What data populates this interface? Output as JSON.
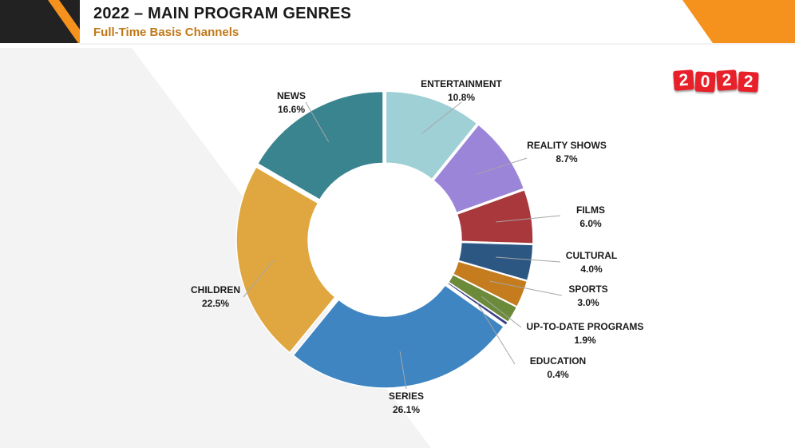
{
  "slide": {
    "title": "2022 – MAIN PROGRAM GENRES",
    "subtitle": "Full-Time Basis Channels",
    "year_badge": [
      "2",
      "0",
      "2",
      "2"
    ]
  },
  "colors": {
    "subtitle": "#c07818",
    "badge": "#e8202a",
    "corner_dark": "#222222",
    "corner_orange": "#f5921e"
  },
  "chart_data": {
    "type": "pie",
    "variant": "donut",
    "title": "",
    "legend": "none",
    "slices": [
      {
        "label": "ENTERTAINMENT",
        "value": 10.8,
        "display": "10.8%",
        "color": "#9fd0d6"
      },
      {
        "label": "REALITY SHOWS",
        "value": 8.7,
        "display": "8.7%",
        "color": "#9b85d9"
      },
      {
        "label": "FILMS",
        "value": 6.0,
        "display": "6.0%",
        "color": "#a8383b"
      },
      {
        "label": "CULTURAL",
        "value": 4.0,
        "display": "4.0%",
        "color": "#2c5783"
      },
      {
        "label": "SPORTS",
        "value": 3.0,
        "display": "3.0%",
        "color": "#c47c1e"
      },
      {
        "label": "UP-TO-DATE PROGRAMS",
        "value": 1.9,
        "display": "1.9%",
        "color": "#6b8a3a"
      },
      {
        "label": "EDUCATION",
        "value": 0.4,
        "display": "0.4%",
        "color": "#3a3f86"
      },
      {
        "label": "SERIES",
        "value": 26.1,
        "display": "26.1%",
        "color": "#3e85c2"
      },
      {
        "label": "CHILDREN",
        "value": 22.5,
        "display": "22.5%",
        "color": "#e0a740"
      },
      {
        "label": "NEWS",
        "value": 16.6,
        "display": "16.6%",
        "color": "#3a8490"
      }
    ]
  }
}
